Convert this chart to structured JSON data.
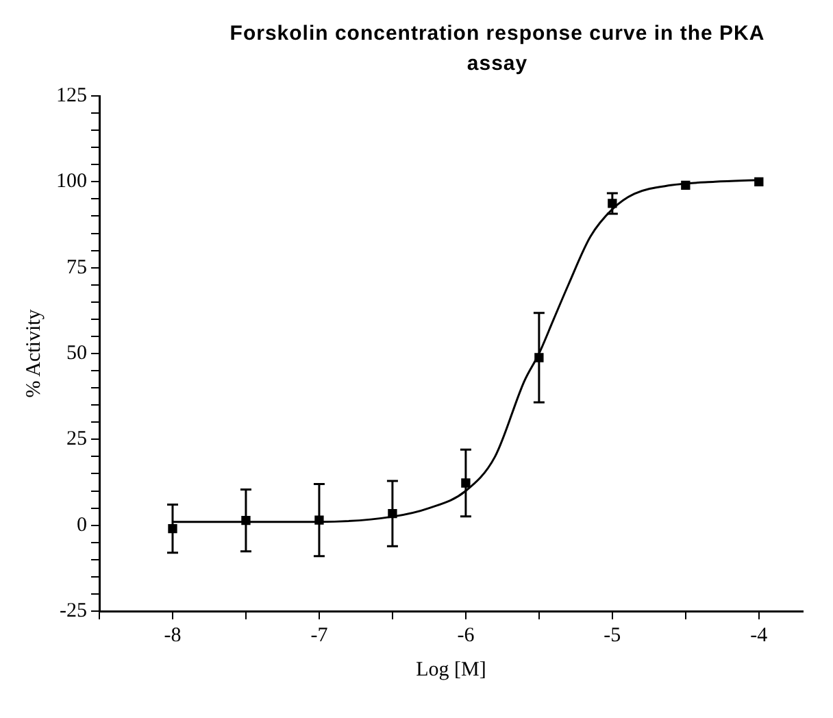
{
  "chart_data": {
    "type": "scatter",
    "title": "Forskolin concentration response curve in the PKA assay",
    "xlabel": "Log [M]",
    "ylabel": "% Activity",
    "x": [
      -8,
      -7.5,
      -7,
      -6.5,
      -6,
      -5.5,
      -5,
      -4.5,
      -4
    ],
    "series": [
      {
        "type": "scatter",
        "color": "#000000",
        "marker": "square",
        "values": [
          -1,
          1.4,
          1.5,
          3.4,
          12.3,
          48.8,
          93.7,
          99,
          100
        ],
        "errors": [
          7,
          9,
          10.5,
          9.5,
          9.7,
          13,
          3,
          null,
          null
        ]
      },
      {
        "type": "line",
        "color": "#000000",
        "marker": "none",
        "line_style": "solid",
        "x": [
          -8,
          -7,
          -6.5,
          -6.25,
          -6,
          -5.8,
          -5.6,
          -5.5,
          -5.4,
          -5.3,
          -5.15,
          -5,
          -4.85,
          -4.6,
          -4.3,
          -4
        ],
        "values": [
          1,
          1,
          2.5,
          5,
          10,
          20,
          42,
          50,
          60,
          70,
          84,
          92,
          96.5,
          99,
          100,
          100.5
        ]
      }
    ],
    "xlim": [
      -8.5,
      -3.7
    ],
    "xticks": [
      {
        "value": -8.5,
        "label": null
      },
      -8,
      {
        "value": -7.5,
        "label": null
      },
      -7,
      {
        "value": -6.5,
        "label": null
      },
      -6,
      {
        "value": -5.5,
        "label": null
      },
      -5,
      {
        "value": -4.5,
        "label": null
      },
      -4
    ],
    "ylim": [
      -25,
      125
    ],
    "yticks": [
      -25,
      {
        "value": -20,
        "label": null
      },
      {
        "value": -15,
        "label": null
      },
      {
        "value": -10,
        "label": null
      },
      {
        "value": -5,
        "label": null
      },
      0,
      {
        "value": 5,
        "label": null
      },
      {
        "value": 10,
        "label": null
      },
      {
        "value": 15,
        "label": null
      },
      {
        "value": 20,
        "label": null
      },
      25,
      {
        "value": 30,
        "label": null
      },
      {
        "value": 35,
        "label": null
      },
      {
        "value": 40,
        "label": null
      },
      {
        "value": 45,
        "label": null
      },
      50,
      {
        "value": 55,
        "label": null
      },
      {
        "value": 60,
        "label": null
      },
      {
        "value": 65,
        "label": null
      },
      {
        "value": 70,
        "label": null
      },
      75,
      {
        "value": 80,
        "label": null
      },
      {
        "value": 85,
        "label": null
      },
      {
        "value": 90,
        "label": null
      },
      {
        "value": 95,
        "label": null
      },
      100,
      {
        "value": 105,
        "label": null
      },
      {
        "value": 110,
        "label": null
      },
      {
        "value": 115,
        "label": null
      },
      {
        "value": 120,
        "label": null
      },
      125
    ],
    "grid": false,
    "legend": false
  }
}
